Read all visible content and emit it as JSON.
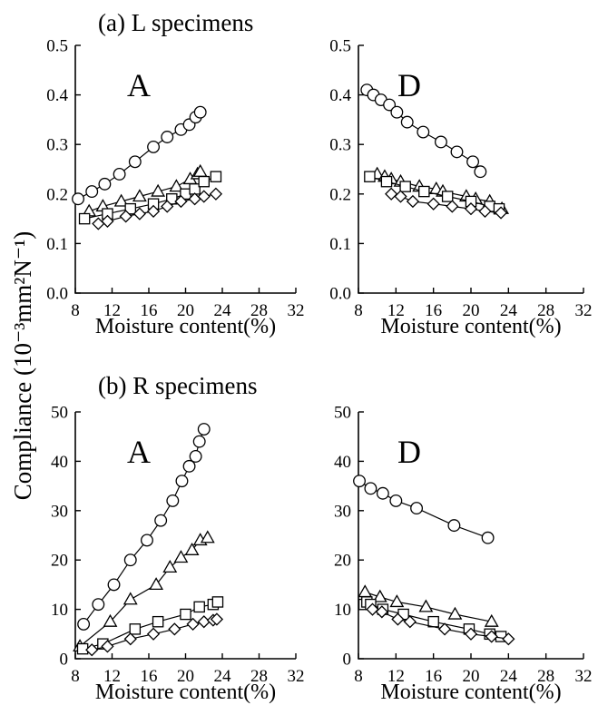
{
  "figure": {
    "ylabel": "Compliance (10⁻³mm²N⁻¹)"
  },
  "chart_data": [
    {
      "type": "line",
      "group_title": "(a) L specimens",
      "panel_label": "A",
      "xlabel": "Moisture content(%)",
      "xlim": [
        8,
        32
      ],
      "ylim": [
        0,
        0.5
      ],
      "xticks": [
        "8",
        "12",
        "16",
        "20",
        "24",
        "28",
        "32"
      ],
      "yticks": [
        "0.0",
        "0.1",
        "0.2",
        "0.3",
        "0.4",
        "0.5"
      ],
      "series": [
        {
          "marker": "circle",
          "x": [
            8.3,
            9.8,
            11.2,
            12.8,
            14.5,
            16.5,
            18.0,
            19.5,
            20.4,
            21.1,
            21.6
          ],
          "y": [
            0.19,
            0.205,
            0.22,
            0.24,
            0.265,
            0.295,
            0.315,
            0.33,
            0.34,
            0.355,
            0.365
          ]
        },
        {
          "marker": "triangle",
          "x": [
            9.5,
            11.0,
            13.0,
            15.0,
            17.0,
            19.0,
            20.5,
            21.3,
            21.6
          ],
          "y": [
            0.165,
            0.175,
            0.185,
            0.195,
            0.205,
            0.215,
            0.23,
            0.24,
            0.245
          ]
        },
        {
          "marker": "square",
          "x": [
            9.0,
            11.5,
            14.0,
            16.5,
            18.5,
            20.0,
            21.0,
            22.0,
            23.3
          ],
          "y": [
            0.15,
            0.16,
            0.17,
            0.18,
            0.19,
            0.2,
            0.21,
            0.225,
            0.235
          ]
        },
        {
          "marker": "diamond",
          "x": [
            10.5,
            11.5,
            13.5,
            15.0,
            16.5,
            18.0,
            19.5,
            21.0,
            22.0,
            23.3
          ],
          "y": [
            0.14,
            0.145,
            0.155,
            0.16,
            0.165,
            0.175,
            0.185,
            0.19,
            0.195,
            0.2
          ]
        }
      ]
    },
    {
      "type": "line",
      "group_title": "",
      "panel_label": "D",
      "xlabel": "Moisture content(%)",
      "xlim": [
        8,
        32
      ],
      "ylim": [
        0,
        0.5
      ],
      "xticks": [
        "8",
        "12",
        "16",
        "20",
        "24",
        "28",
        "32"
      ],
      "yticks": [
        "0.0",
        "0.1",
        "0.2",
        "0.3",
        "0.4",
        "0.5"
      ],
      "series": [
        {
          "marker": "circle",
          "x": [
            8.9,
            9.6,
            10.4,
            11.3,
            12.1,
            13.2,
            14.9,
            16.8,
            18.5,
            20.2,
            21.0
          ],
          "y": [
            0.41,
            0.4,
            0.39,
            0.38,
            0.365,
            0.345,
            0.325,
            0.305,
            0.285,
            0.265,
            0.245
          ]
        },
        {
          "marker": "triangle",
          "x": [
            10.0,
            10.8,
            11.5,
            12.5,
            14.5,
            16.3,
            17.0,
            19.5,
            20.5,
            22.0,
            23.3
          ],
          "y": [
            0.24,
            0.235,
            0.23,
            0.225,
            0.215,
            0.21,
            0.205,
            0.195,
            0.19,
            0.185,
            0.17
          ]
        },
        {
          "marker": "square",
          "x": [
            9.2,
            11.0,
            13.0,
            15.0,
            17.5,
            20.0,
            22.0,
            23.0
          ],
          "y": [
            0.235,
            0.225,
            0.215,
            0.205,
            0.195,
            0.185,
            0.175,
            0.17
          ]
        },
        {
          "marker": "diamond",
          "x": [
            11.5,
            12.5,
            13.8,
            16.0,
            18.0,
            20.0,
            21.5,
            23.2
          ],
          "y": [
            0.2,
            0.195,
            0.185,
            0.18,
            0.175,
            0.17,
            0.165,
            0.162
          ]
        }
      ]
    },
    {
      "type": "line",
      "group_title": "(b) R specimens",
      "panel_label": "A",
      "xlabel": "Moisture content(%)",
      "xlim": [
        8,
        32
      ],
      "ylim": [
        0,
        50
      ],
      "xticks": [
        "8",
        "12",
        "16",
        "20",
        "24",
        "28",
        "32"
      ],
      "yticks": [
        "0",
        "10",
        "20",
        "30",
        "40",
        "50"
      ],
      "series": [
        {
          "marker": "circle",
          "x": [
            8.9,
            10.5,
            12.2,
            14.0,
            15.8,
            17.3,
            18.6,
            19.6,
            20.4,
            21.1,
            21.5,
            22.0
          ],
          "y": [
            7,
            11,
            15,
            20,
            24,
            28,
            32,
            36,
            39,
            41,
            44,
            46.5
          ]
        },
        {
          "marker": "triangle",
          "x": [
            8.5,
            11.8,
            14.0,
            16.8,
            18.3,
            19.5,
            20.7,
            21.6,
            22.4
          ],
          "y": [
            2.5,
            7.5,
            12,
            15,
            18.5,
            20.5,
            22,
            24,
            24.5
          ]
        },
        {
          "marker": "square",
          "x": [
            8.8,
            11.0,
            14.5,
            17.0,
            20.0,
            21.5,
            23.0,
            23.5
          ],
          "y": [
            2,
            3,
            6,
            7.5,
            9,
            10.5,
            11,
            11.5
          ]
        },
        {
          "marker": "diamond",
          "x": [
            9.8,
            11.5,
            14.0,
            16.5,
            18.8,
            20.8,
            22.0,
            23.0,
            23.4
          ],
          "y": [
            1.8,
            2.5,
            4,
            5,
            6,
            7,
            7.5,
            7.8,
            8
          ]
        }
      ]
    },
    {
      "type": "line",
      "group_title": "",
      "panel_label": "D",
      "xlabel": "Moisture content(%)",
      "xlim": [
        8,
        32
      ],
      "ylim": [
        0,
        50
      ],
      "xticks": [
        "8",
        "12",
        "16",
        "20",
        "24",
        "28",
        "32"
      ],
      "yticks": [
        "0",
        "10",
        "20",
        "30",
        "40",
        "50"
      ],
      "series": [
        {
          "marker": "circle",
          "x": [
            8.1,
            9.3,
            10.6,
            12.0,
            14.2,
            18.2,
            21.8
          ],
          "y": [
            36,
            34.5,
            33.5,
            32,
            30.5,
            27,
            24.5
          ]
        },
        {
          "marker": "triangle",
          "x": [
            8.7,
            10.3,
            12.1,
            15.2,
            18.3,
            22.2
          ],
          "y": [
            13.5,
            12.5,
            11.5,
            10.5,
            9,
            7.5
          ]
        },
        {
          "marker": "square",
          "x": [
            8.6,
            8.9,
            9.3,
            10.6,
            12.8,
            16.0,
            19.8,
            22.0,
            23.2
          ],
          "y": [
            11,
            11.5,
            11,
            10,
            9,
            7.5,
            6,
            5,
            4.5
          ]
        },
        {
          "marker": "diamond",
          "x": [
            9.5,
            10.5,
            12.2,
            13.5,
            17.2,
            20.0,
            22.2,
            24.0
          ],
          "y": [
            10,
            9.5,
            8,
            7.5,
            6,
            5,
            4.5,
            4
          ]
        }
      ]
    }
  ]
}
